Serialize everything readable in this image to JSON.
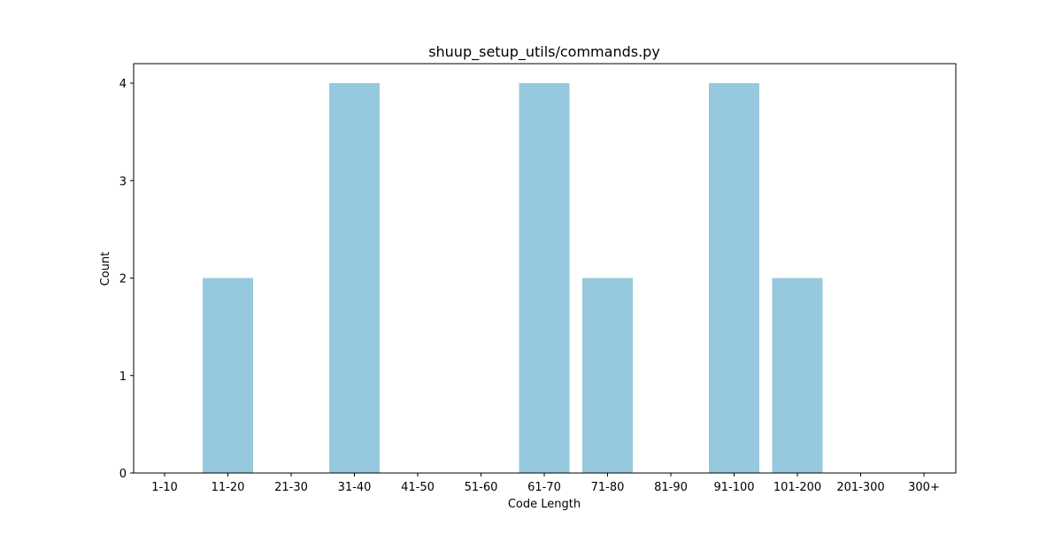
{
  "chart_data": {
    "type": "bar",
    "title": "shuup_setup_utils/commands.py",
    "xlabel": "Code Length",
    "ylabel": "Count",
    "categories": [
      "1-10",
      "11-20",
      "21-30",
      "31-40",
      "41-50",
      "51-60",
      "61-70",
      "71-80",
      "81-90",
      "91-100",
      "101-200",
      "201-300",
      "300+"
    ],
    "values": [
      0,
      2,
      0,
      4,
      0,
      0,
      4,
      2,
      0,
      4,
      2,
      0,
      0
    ],
    "ylim": [
      0,
      4.2
    ],
    "yticks": [
      0,
      1,
      2,
      3,
      4
    ],
    "grid": false,
    "legend": "none",
    "bar_color": "#96c9dd"
  }
}
